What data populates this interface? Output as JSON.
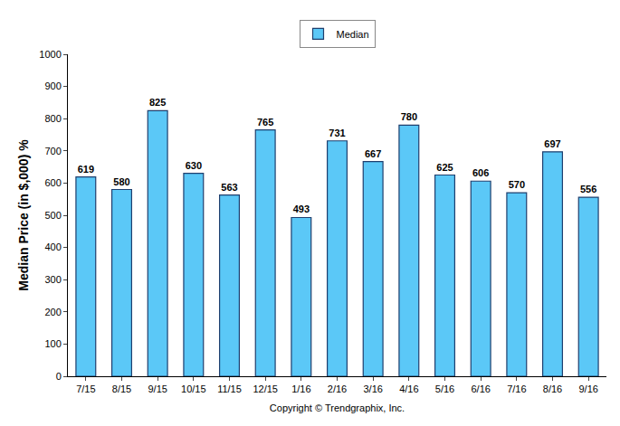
{
  "chart_data": {
    "type": "bar",
    "ylabel": "Median Price (in $,000) %",
    "xlabel": "Copyright © Trendgraphix, Inc.",
    "categories": [
      "7/15",
      "8/15",
      "9/15",
      "10/15",
      "11/15",
      "12/15",
      "1/16",
      "2/16",
      "3/16",
      "4/16",
      "5/16",
      "6/16",
      "7/16",
      "8/16",
      "9/16"
    ],
    "series": [
      {
        "name": "Median",
        "color": "#5bc8f7",
        "values": [
          619,
          580,
          825,
          630,
          563,
          765,
          493,
          731,
          667,
          780,
          625,
          606,
          570,
          697,
          556
        ]
      }
    ],
    "ylim": [
      0,
      1000
    ],
    "yticks": [
      0,
      100,
      200,
      300,
      400,
      500,
      600,
      700,
      800,
      900,
      1000
    ],
    "grid": false,
    "legend": "top",
    "data_labels": true
  }
}
